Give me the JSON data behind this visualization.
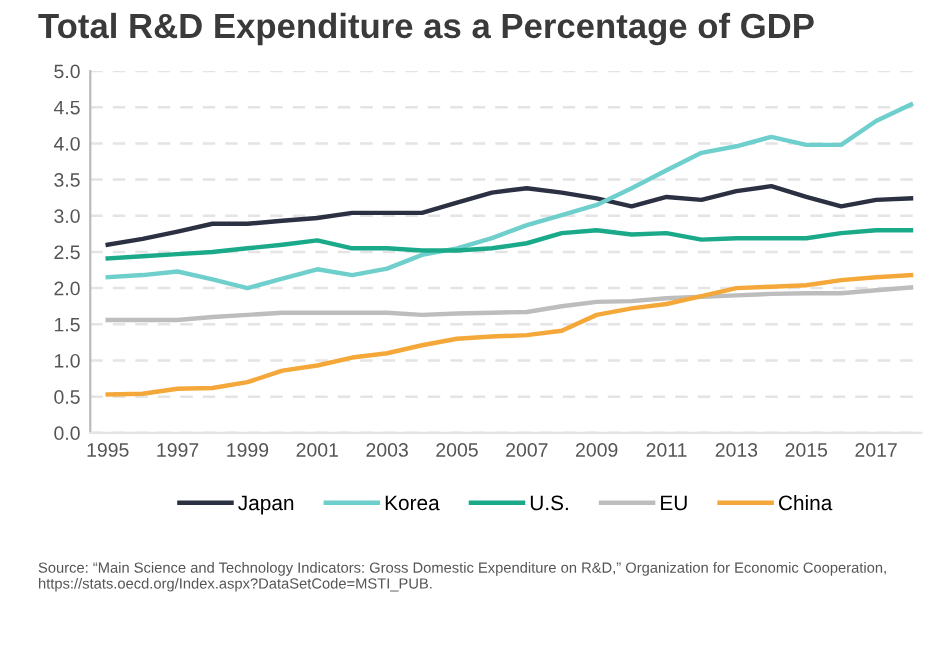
{
  "chart_data": {
    "type": "line",
    "title": "Total R&D Expenditure as a Percentage of GDP",
    "x": [
      1995,
      1996,
      1997,
      1998,
      1999,
      2000,
      2001,
      2002,
      2003,
      2004,
      2005,
      2006,
      2007,
      2008,
      2009,
      2010,
      2011,
      2012,
      2013,
      2014,
      2015,
      2016,
      2017,
      2018
    ],
    "series": [
      {
        "name": "Japan",
        "color": "#2b3142",
        "values": [
          2.6,
          2.68,
          2.78,
          2.89,
          2.89,
          2.93,
          2.97,
          3.04,
          3.04,
          3.04,
          3.18,
          3.32,
          3.38,
          3.32,
          3.24,
          3.13,
          3.26,
          3.22,
          3.34,
          3.41,
          3.26,
          3.13,
          3.22,
          3.24
        ]
      },
      {
        "name": "Korea",
        "color": "#6fcfcc",
        "values": [
          2.15,
          2.18,
          2.23,
          2.12,
          2.0,
          2.13,
          2.26,
          2.18,
          2.27,
          2.46,
          2.55,
          2.69,
          2.87,
          3.01,
          3.15,
          3.38,
          3.63,
          3.87,
          3.96,
          4.09,
          3.98,
          3.98,
          4.31,
          4.54
        ]
      },
      {
        "name": "U.S.",
        "color": "#1aaa8a",
        "values": [
          2.41,
          2.44,
          2.47,
          2.5,
          2.55,
          2.6,
          2.66,
          2.55,
          2.55,
          2.52,
          2.52,
          2.55,
          2.62,
          2.76,
          2.8,
          2.74,
          2.76,
          2.67,
          2.69,
          2.69,
          2.69,
          2.76,
          2.8,
          2.8
        ]
      },
      {
        "name": "EU",
        "color": "#bdbdbd",
        "values": [
          1.56,
          1.56,
          1.56,
          1.6,
          1.63,
          1.66,
          1.66,
          1.66,
          1.66,
          1.63,
          1.65,
          1.66,
          1.67,
          1.75,
          1.81,
          1.82,
          1.86,
          1.88,
          1.9,
          1.92,
          1.93,
          1.93,
          1.97,
          2.01
        ]
      },
      {
        "name": "China",
        "color": "#f5a83a",
        "values": [
          0.53,
          0.54,
          0.61,
          0.62,
          0.7,
          0.86,
          0.93,
          1.04,
          1.1,
          1.21,
          1.3,
          1.33,
          1.35,
          1.41,
          1.63,
          1.72,
          1.78,
          1.89,
          2.0,
          2.02,
          2.04,
          2.11,
          2.15,
          2.18
        ]
      }
    ],
    "xlim": [
      1994.5,
      2018.3
    ],
    "xticks": [
      1995,
      1997,
      1999,
      2001,
      2003,
      2005,
      2007,
      2009,
      2011,
      2013,
      2015,
      2017
    ],
    "ylim": [
      0,
      5
    ],
    "yticks": [
      {
        "value": 0,
        "label": "0.0"
      },
      {
        "value": 0.5,
        "label": "0.5"
      },
      {
        "value": 1,
        "label": "1.0"
      },
      {
        "value": 1.5,
        "label": "1.5"
      },
      {
        "value": 2,
        "label": "2.0"
      },
      {
        "value": 2.5,
        "label": "2.5"
      },
      {
        "value": 3,
        "label": "3.0"
      },
      {
        "value": 3.5,
        "label": "3.5"
      },
      {
        "value": 4,
        "label": "4.0"
      },
      {
        "value": 4.5,
        "label": "4.5"
      },
      {
        "value": 5,
        "label": "5.0"
      }
    ],
    "grid": "y",
    "legend": "bottom",
    "line_style": "solid",
    "marker": "none",
    "annotations": [
      "Source: “Main Science and Technology Indicators: Gross Domestic Expenditure on R&D,” Organization for Economic Cooperation, https://stats.oecd.org/Index.aspx?DataSetCode=MSTI_PUB."
    ]
  }
}
